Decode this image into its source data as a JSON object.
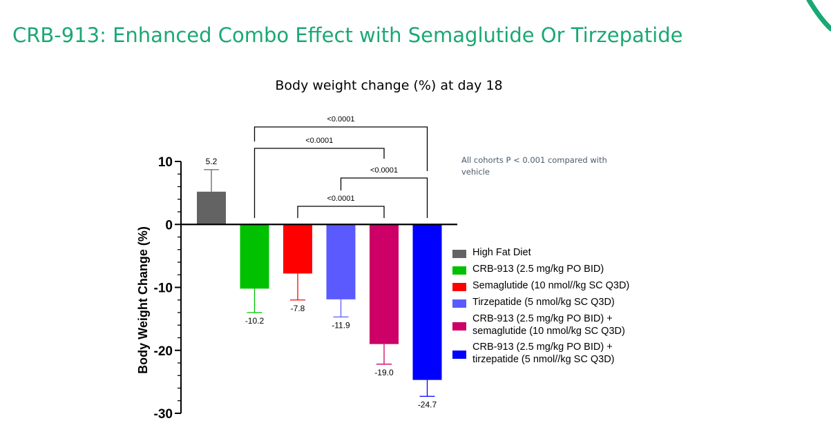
{
  "slide": {
    "title": "CRB-913: Enhanced Combo Effect with Semaglutide Or Tirzepatide",
    "accent_color": "#1aa874"
  },
  "note": "All cohorts P < 0.001 compared with vehicle",
  "chart_data": {
    "type": "bar",
    "title": "Body weight change (%) at day 18",
    "ylabel": "Body Weight Change (%)",
    "xlabel": "",
    "ylim": [
      -30,
      10
    ],
    "yticks": [
      10,
      0,
      -10,
      -20,
      -30
    ],
    "grid": false,
    "legend_position": "right",
    "categories": [
      "High Fat Diet",
      "CRB-913 (2.5 mg/kg PO BID)",
      "Semaglutide (10 nmol//kg SC Q3D)",
      "Tirzepatide (5 nmol/kg SC Q3D)",
      "CRB-913 (2.5 mg/kg PO BID) + semaglutide  (10 nmol/kg SC Q3D)",
      "CRB-913 (2.5 mg/kg PO BID) + tirzepatide (5 nmol//kg SC Q3D)"
    ],
    "legend_lines": [
      [
        "High Fat Diet"
      ],
      [
        "CRB-913 (2.5 mg/kg PO BID)"
      ],
      [
        "Semaglutide (10 nmol//kg SC Q3D)"
      ],
      [
        "Tirzepatide (5 nmol/kg SC Q3D)"
      ],
      [
        "CRB-913 (2.5 mg/kg PO BID) +",
        "semaglutide  (10 nmol/kg SC Q3D)"
      ],
      [
        "CRB-913 (2.5 mg/kg PO BID) +",
        "tirzepatide (5 nmol//kg SC Q3D)"
      ]
    ],
    "values": [
      5.2,
      -10.2,
      -7.8,
      -11.9,
      -19.0,
      -24.7
    ],
    "value_labels": [
      "5.2",
      "-10.2",
      "-7.8",
      "-11.9",
      "-19.0",
      "-24.7"
    ],
    "error": [
      3.5,
      3.8,
      4.2,
      2.8,
      3.2,
      2.6
    ],
    "colors": [
      "#636363",
      "#00c000",
      "#ff0000",
      "#5a5aff",
      "#cc0066",
      "#0000ff"
    ],
    "comparisons": [
      {
        "from": 1,
        "to": 5,
        "label": "<0.0001"
      },
      {
        "from": 1,
        "to": 4,
        "label": "<0.0001"
      },
      {
        "from": 3,
        "to": 5,
        "label": "<0.0001"
      },
      {
        "from": 2,
        "to": 4,
        "label": "<0.0001"
      }
    ]
  }
}
